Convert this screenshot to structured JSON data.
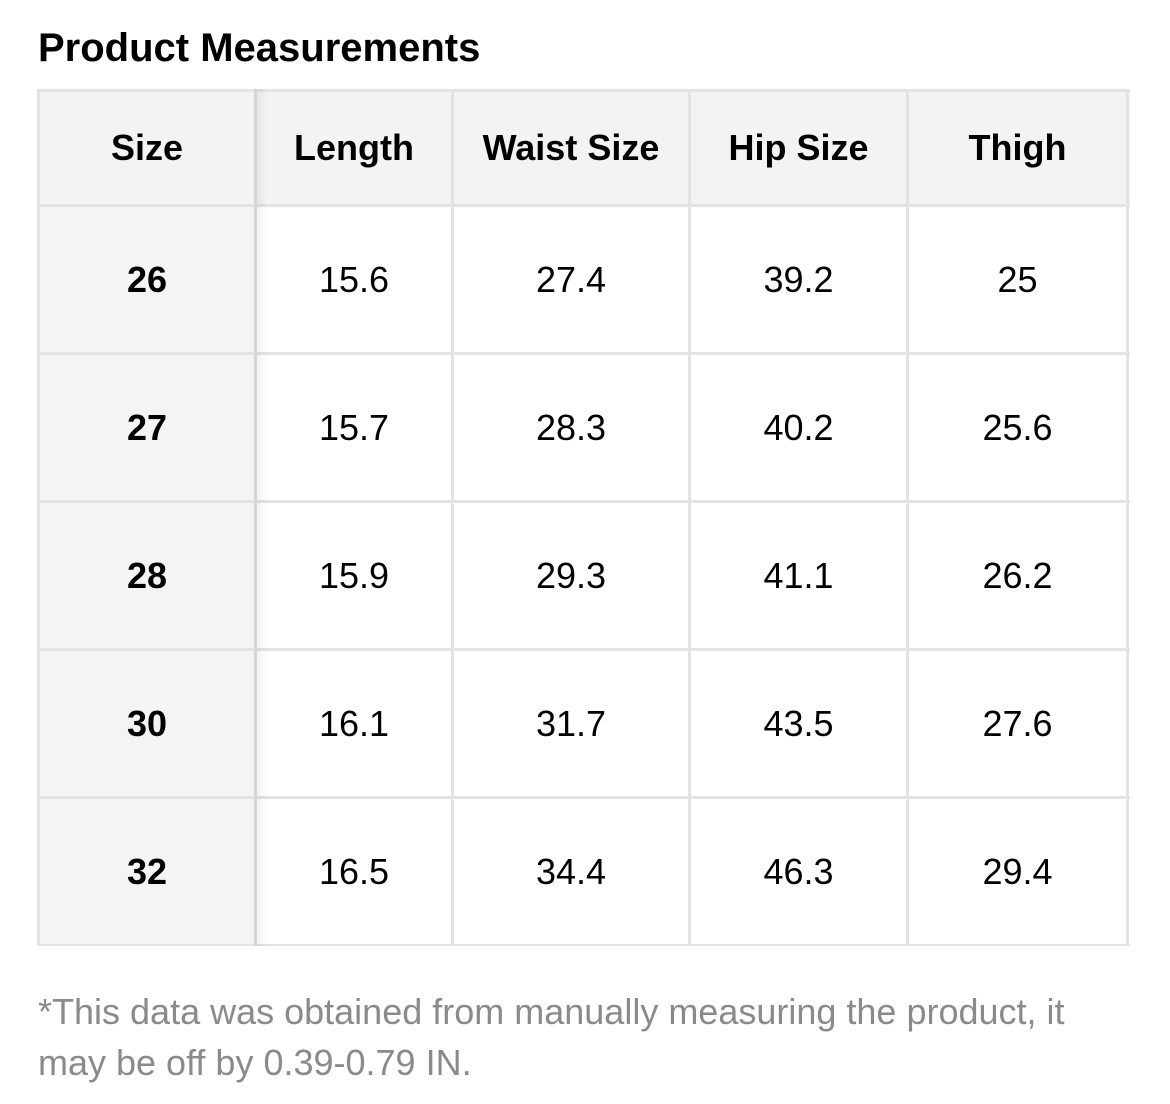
{
  "title": "Product Measurements",
  "table": {
    "headers": [
      "Size",
      "Length",
      "Waist Size",
      "Hip Size",
      "Thigh"
    ],
    "rows": [
      [
        "26",
        "15.6",
        "27.4",
        "39.2",
        "25"
      ],
      [
        "27",
        "15.7",
        "28.3",
        "40.2",
        "25.6"
      ],
      [
        "28",
        "15.9",
        "29.3",
        "41.1",
        "26.2"
      ],
      [
        "30",
        "16.1",
        "31.7",
        "43.5",
        "27.6"
      ],
      [
        "32",
        "16.5",
        "34.4",
        "46.3",
        "29.4"
      ]
    ]
  },
  "note": "*This data was obtained from manually measuring the product, it may be off by 0.39-0.79 IN.",
  "colors": {
    "header_bg": "#f3f3f3",
    "size_column_bg": "#f4f4f4",
    "border": "#e3e3e3",
    "note_text": "#8a8a8a"
  }
}
